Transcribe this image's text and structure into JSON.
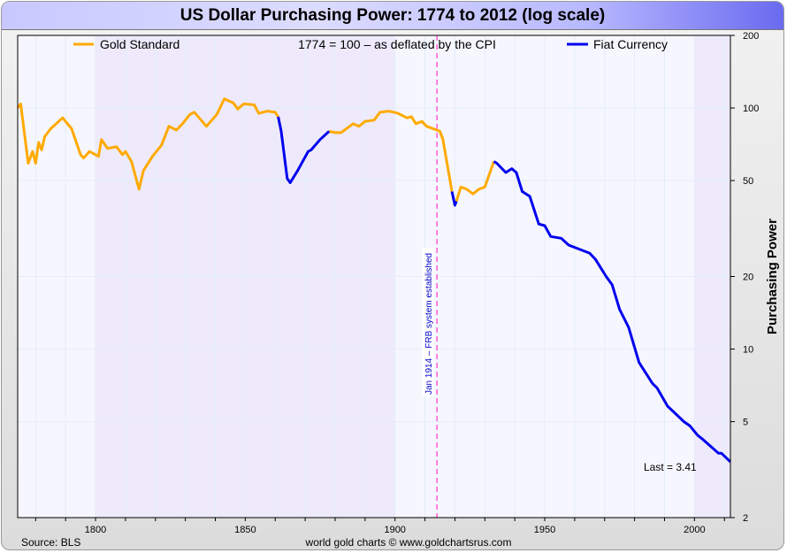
{
  "chart_data": {
    "type": "line",
    "title": "US Dollar Purchasing Power: 1774 to 2012 (log scale)",
    "subtitle": "1774 = 100 – as deflated by the CPI",
    "xlabel": "",
    "ylabel": "Purchasing Power",
    "xlim": [
      1774,
      2012
    ],
    "ylim": [
      2,
      200
    ],
    "yscale": "log",
    "xticks": [
      1800,
      1850,
      1900,
      1950,
      2000
    ],
    "yticks": [
      200,
      100,
      50,
      20,
      10,
      5,
      2
    ],
    "grid": true,
    "legend_placement": "top",
    "shaded_periods": [
      [
        1800,
        1900
      ],
      [
        2000,
        2012
      ]
    ],
    "annotation_line": {
      "x": 1914,
      "label": "Jan 1914 – FRB system established",
      "color": "#ff33cc"
    },
    "last_label": "Last = 3.41",
    "source": "Source: BLS",
    "credit": "world gold charts © www.goldchartsrus.com",
    "series": [
      {
        "name": "Gold Standard",
        "color": "#ffaa00",
        "segments": [
          [
            [
              1774,
              100
            ],
            [
              1775,
              104
            ],
            [
              1777.5,
              59
            ],
            [
              1779,
              66
            ],
            [
              1780,
              59
            ],
            [
              1781,
              72
            ],
            [
              1782,
              67
            ],
            [
              1783,
              76
            ],
            [
              1785,
              82
            ],
            [
              1789,
              91
            ],
            [
              1792,
              82
            ],
            [
              1795,
              64
            ],
            [
              1796,
              62
            ],
            [
              1798,
              66
            ],
            [
              1801,
              63
            ],
            [
              1802,
              74
            ],
            [
              1804,
              68
            ],
            [
              1807,
              69
            ],
            [
              1809,
              64
            ],
            [
              1810,
              66
            ],
            [
              1812,
              60
            ],
            [
              1814.5,
              46
            ],
            [
              1816,
              55
            ],
            [
              1819,
              63
            ],
            [
              1822,
              70
            ],
            [
              1824.5,
              84
            ],
            [
              1827,
              81
            ],
            [
              1829,
              86
            ],
            [
              1831.5,
              94
            ],
            [
              1833,
              96
            ],
            [
              1837,
              84
            ],
            [
              1840.5,
              94
            ],
            [
              1843,
              109
            ],
            [
              1846,
              105
            ],
            [
              1847.5,
              99
            ],
            [
              1849.5,
              104
            ],
            [
              1853,
              103
            ],
            [
              1854.5,
              95
            ],
            [
              1857.5,
              97
            ],
            [
              1860,
              96
            ],
            [
              1861,
              92
            ]
          ],
          [
            [
              1878,
              80
            ],
            [
              1880,
              79
            ],
            [
              1882,
              79
            ],
            [
              1886,
              86
            ],
            [
              1888,
              84
            ],
            [
              1890,
              88
            ],
            [
              1893,
              89
            ],
            [
              1895,
              96
            ],
            [
              1898,
              97
            ],
            [
              1901,
              95
            ],
            [
              1904,
              91
            ],
            [
              1905.5,
              92
            ],
            [
              1907,
              86
            ],
            [
              1909,
              88
            ],
            [
              1910.5,
              84
            ],
            [
              1914,
              81
            ],
            [
              1915,
              80
            ],
            [
              1916,
              74
            ],
            [
              1919,
              45
            ]
          ],
          [
            [
              1920.5,
              41
            ],
            [
              1921,
              43
            ],
            [
              1922,
              47
            ],
            [
              1924,
              46
            ],
            [
              1926,
              44
            ],
            [
              1928,
              46
            ],
            [
              1930,
              47
            ],
            [
              1933,
              60
            ]
          ]
        ]
      },
      {
        "name": "Fiat Currency",
        "color": "#0000ee",
        "segments": [
          [
            [
              1861,
              92
            ],
            [
              1862,
              80
            ],
            [
              1864,
              51
            ],
            [
              1865,
              49
            ],
            [
              1867.5,
              55
            ],
            [
              1871,
              66
            ],
            [
              1872,
              67
            ],
            [
              1875,
              74
            ],
            [
              1878,
              80
            ]
          ],
          [
            [
              1919,
              45
            ],
            [
              1920,
              39.5
            ],
            [
              1920.5,
              41
            ]
          ],
          [
            [
              1933,
              60
            ],
            [
              1934,
              59
            ],
            [
              1937,
              54
            ],
            [
              1939,
              56
            ],
            [
              1940.5,
              54
            ],
            [
              1942.5,
              45
            ],
            [
              1945,
              43
            ],
            [
              1948,
              33
            ],
            [
              1950,
              32.5
            ],
            [
              1952,
              29.3
            ],
            [
              1955.5,
              28.8
            ],
            [
              1958,
              27
            ],
            [
              1965,
              25
            ],
            [
              1967,
              23.5
            ],
            [
              1970.5,
              20
            ],
            [
              1972.5,
              18.5
            ],
            [
              1975,
              14.6
            ],
            [
              1978,
              12.3
            ],
            [
              1981.5,
              8.8
            ],
            [
              1986,
              7.2
            ],
            [
              1987.5,
              6.9
            ],
            [
              1991,
              5.8
            ],
            [
              1996.5,
              5
            ],
            [
              1998.5,
              4.8
            ],
            [
              2001,
              4.4
            ],
            [
              2003,
              4.2
            ],
            [
              2008,
              3.7
            ],
            [
              2009,
              3.7
            ],
            [
              2012,
              3.41
            ]
          ]
        ]
      }
    ]
  }
}
